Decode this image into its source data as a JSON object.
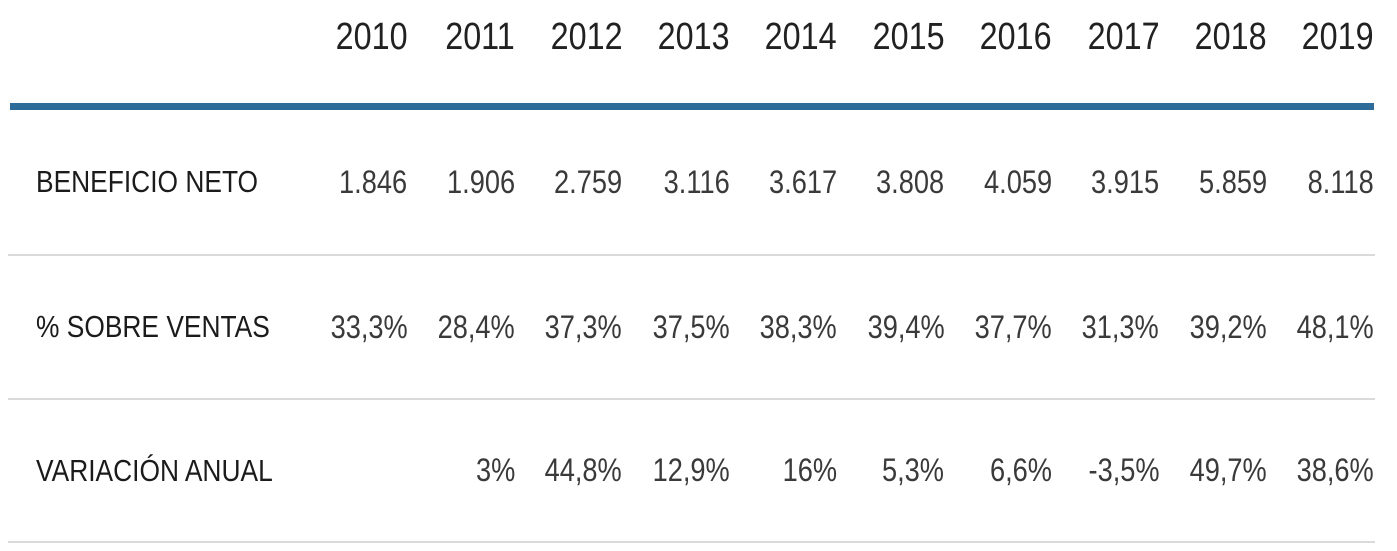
{
  "colors": {
    "accent_rule": "#2d6c99",
    "separator": "#dadada",
    "header_text": "#212121",
    "label_text": "#1b1b1b",
    "value_text": "#3a3a3a",
    "background": "#ffffff"
  },
  "table": {
    "years": [
      "2010",
      "2011",
      "2012",
      "2013",
      "2014",
      "2015",
      "2016",
      "2017",
      "2018",
      "2019"
    ],
    "rows": [
      {
        "label": "BENEFICIO NETO",
        "values": [
          "1.846",
          "1.906",
          "2.759",
          "3.116",
          "3.617",
          "3.808",
          "4.059",
          "3.915",
          "5.859",
          "8.118"
        ]
      },
      {
        "label": "% SOBRE VENTAS",
        "values": [
          "33,3%",
          "28,4%",
          "37,3%",
          "37,5%",
          "38,3%",
          "39,4%",
          "37,7%",
          "31,3%",
          "39,2%",
          "48,1%"
        ]
      },
      {
        "label": "VARIACIÓN ANUAL",
        "values": [
          "",
          "3%",
          "44,8%",
          "12,9%",
          "16%",
          "5,3%",
          "6,6%",
          "-3,5%",
          "49,7%",
          "38,6%"
        ]
      }
    ]
  },
  "chart_data": {
    "type": "table",
    "columns": [
      "",
      "2010",
      "2011",
      "2012",
      "2013",
      "2014",
      "2015",
      "2016",
      "2017",
      "2018",
      "2019"
    ],
    "rows": [
      [
        "BENEFICIO NETO",
        "1.846",
        "1.906",
        "2.759",
        "3.116",
        "3.617",
        "3.808",
        "4.059",
        "3.915",
        "5.859",
        "8.118"
      ],
      [
        "% SOBRE VENTAS",
        "33,3%",
        "28,4%",
        "37,3%",
        "37,5%",
        "38,3%",
        "39,4%",
        "37,7%",
        "31,3%",
        "39,2%",
        "48,1%"
      ],
      [
        "VARIACIÓN ANUAL",
        "",
        "3%",
        "44,8%",
        "12,9%",
        "16%",
        "5,3%",
        "6,6%",
        "-3,5%",
        "49,7%",
        "38,6%"
      ]
    ],
    "x": [
      "2010",
      "2011",
      "2012",
      "2013",
      "2014",
      "2015",
      "2016",
      "2017",
      "2018",
      "2019"
    ],
    "series": [
      {
        "name": "BENEFICIO NETO",
        "values": [
          1846,
          1906,
          2759,
          3116,
          3617,
          3808,
          4059,
          3915,
          5859,
          8118
        ]
      },
      {
        "name": "% SOBRE VENTAS",
        "values": [
          33.3,
          28.4,
          37.3,
          37.5,
          38.3,
          39.4,
          37.7,
          31.3,
          39.2,
          48.1
        ]
      },
      {
        "name": "VARIACIÓN ANUAL",
        "values": [
          null,
          3,
          44.8,
          12.9,
          16,
          5.3,
          6.6,
          -3.5,
          49.7,
          38.6
        ]
      }
    ],
    "title": "",
    "xlabel": "",
    "ylabel": "",
    "legend": false,
    "grid": false
  }
}
